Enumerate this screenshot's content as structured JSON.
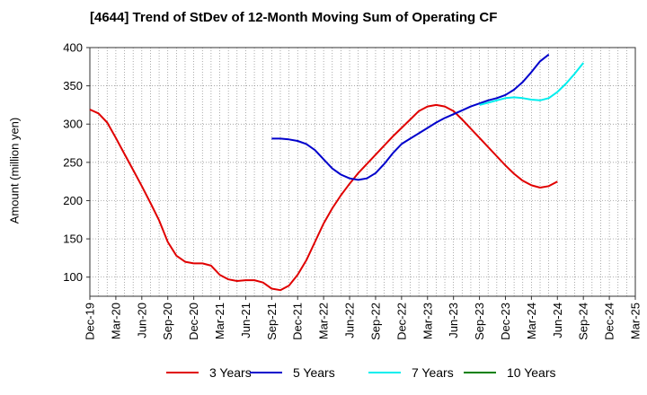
{
  "chart_data": {
    "type": "line",
    "title": "[4644]  Trend of StDev of 12-Month Moving Sum of Operating CF",
    "ylabel": "Amount (million yen)",
    "xlabel": "",
    "ylim": [
      75,
      400
    ],
    "yticks": [
      100,
      150,
      200,
      250,
      300,
      350,
      400
    ],
    "grid": true,
    "grid_style": "dotted",
    "legend_position": "bottom",
    "x_tick_labels": [
      "Dec-19",
      "Mar-20",
      "Jun-20",
      "Sep-20",
      "Dec-20",
      "Mar-21",
      "Jun-21",
      "Sep-21",
      "Dec-21",
      "Mar-22",
      "Jun-22",
      "Sep-22",
      "Dec-22",
      "Mar-23",
      "Jun-23",
      "Sep-23",
      "Dec-23",
      "Mar-24",
      "Jun-24",
      "Sep-24",
      "Dec-24",
      "Mar-25"
    ],
    "x_range": [
      "Dec-19",
      "Mar-25"
    ],
    "series": [
      {
        "name": "3 Years",
        "color": "#e00000",
        "points": [
          [
            "Dec-19",
            319
          ],
          [
            "Jan-20",
            314
          ],
          [
            "Feb-20",
            302
          ],
          [
            "Mar-20",
            282
          ],
          [
            "Apr-20",
            261
          ],
          [
            "May-20",
            240
          ],
          [
            "Jun-20",
            219
          ],
          [
            "Jul-20",
            197
          ],
          [
            "Aug-20",
            174
          ],
          [
            "Sep-20",
            146
          ],
          [
            "Oct-20",
            128
          ],
          [
            "Nov-20",
            120
          ],
          [
            "Dec-20",
            118
          ],
          [
            "Jan-21",
            118
          ],
          [
            "Feb-21",
            115
          ],
          [
            "Mar-21",
            103
          ],
          [
            "Apr-21",
            97
          ],
          [
            "May-21",
            95
          ],
          [
            "Jun-21",
            96
          ],
          [
            "Jul-21",
            96
          ],
          [
            "Aug-21",
            93
          ],
          [
            "Sep-21",
            85
          ],
          [
            "Oct-21",
            83
          ],
          [
            "Nov-21",
            89
          ],
          [
            "Dec-21",
            103
          ],
          [
            "Jan-22",
            122
          ],
          [
            "Feb-22",
            146
          ],
          [
            "Mar-22",
            170
          ],
          [
            "Apr-22",
            190
          ],
          [
            "May-22",
            207
          ],
          [
            "Jun-22",
            222
          ],
          [
            "Jul-22",
            236
          ],
          [
            "Aug-22",
            248
          ],
          [
            "Sep-22",
            260
          ],
          [
            "Oct-22",
            272
          ],
          [
            "Nov-22",
            284
          ],
          [
            "Dec-22",
            295
          ],
          [
            "Jan-23",
            306
          ],
          [
            "Feb-23",
            317
          ],
          [
            "Mar-23",
            323
          ],
          [
            "Apr-23",
            325
          ],
          [
            "May-23",
            323
          ],
          [
            "Jun-23",
            317
          ],
          [
            "Jul-23",
            306
          ],
          [
            "Aug-23",
            294
          ],
          [
            "Sep-23",
            282
          ],
          [
            "Oct-23",
            270
          ],
          [
            "Nov-23",
            258
          ],
          [
            "Dec-23",
            246
          ],
          [
            "Jan-24",
            235
          ],
          [
            "Feb-24",
            226
          ],
          [
            "Mar-24",
            220
          ],
          [
            "Apr-24",
            217
          ],
          [
            "May-24",
            219
          ],
          [
            "Jun-24",
            225
          ]
        ]
      },
      {
        "name": "5 Years",
        "color": "#0000cc",
        "points": [
          [
            "Sep-21",
            281
          ],
          [
            "Oct-21",
            281
          ],
          [
            "Nov-21",
            280
          ],
          [
            "Dec-21",
            278
          ],
          [
            "Jan-22",
            274
          ],
          [
            "Feb-22",
            266
          ],
          [
            "Mar-22",
            254
          ],
          [
            "Apr-22",
            242
          ],
          [
            "May-22",
            234
          ],
          [
            "Jun-22",
            229
          ],
          [
            "Jul-22",
            227
          ],
          [
            "Aug-22",
            229
          ],
          [
            "Sep-22",
            236
          ],
          [
            "Oct-22",
            248
          ],
          [
            "Nov-22",
            262
          ],
          [
            "Dec-22",
            274
          ],
          [
            "Jan-23",
            281
          ],
          [
            "Feb-23",
            288
          ],
          [
            "Mar-23",
            295
          ],
          [
            "Apr-23",
            302
          ],
          [
            "May-23",
            308
          ],
          [
            "Jun-23",
            313
          ],
          [
            "Jul-23",
            318
          ],
          [
            "Aug-23",
            323
          ],
          [
            "Sep-23",
            327
          ],
          [
            "Oct-23",
            331
          ],
          [
            "Nov-23",
            334
          ],
          [
            "Dec-23",
            338
          ],
          [
            "Jan-24",
            345
          ],
          [
            "Feb-24",
            355
          ],
          [
            "Mar-24",
            368
          ],
          [
            "Apr-24",
            382
          ],
          [
            "May-24",
            391
          ]
        ]
      },
      {
        "name": "7 Years",
        "color": "#00eeee",
        "points": [
          [
            "Sep-23",
            325
          ],
          [
            "Oct-23",
            328
          ],
          [
            "Nov-23",
            331
          ],
          [
            "Dec-23",
            334
          ],
          [
            "Jan-24",
            335
          ],
          [
            "Feb-24",
            334
          ],
          [
            "Mar-24",
            332
          ],
          [
            "Apr-24",
            331
          ],
          [
            "May-24",
            334
          ],
          [
            "Jun-24",
            342
          ],
          [
            "Jul-24",
            353
          ],
          [
            "Aug-24",
            366
          ],
          [
            "Sep-24",
            380
          ]
        ]
      },
      {
        "name": "10 Years",
        "color": "#008000",
        "points": []
      }
    ]
  }
}
